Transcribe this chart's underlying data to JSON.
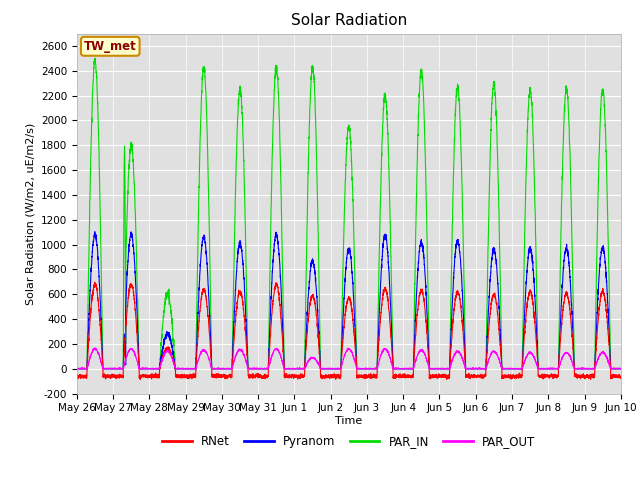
{
  "title": "Solar Radiation",
  "ylabel": "Solar Radiation (W/m2, uE/m2/s)",
  "xlabel": "Time",
  "ylim": [
    -200,
    2700
  ],
  "yticks": [
    -200,
    0,
    200,
    400,
    600,
    800,
    1000,
    1200,
    1400,
    1600,
    1800,
    2000,
    2200,
    2400,
    2600
  ],
  "xtick_labels": [
    "May 26",
    "May 27",
    "May 28",
    "May 29",
    "May 30",
    "May 31",
    "Jun 1",
    "Jun 2",
    "Jun 3",
    "Jun 4",
    "Jun 5",
    "Jun 6",
    "Jun 7",
    "Jun 8",
    "Jun 9",
    "Jun 10"
  ],
  "line_colors": {
    "RNet": "#ff0000",
    "Pyranom": "#0000ff",
    "PAR_IN": "#00dd00",
    "PAR_OUT": "#ff00ff"
  },
  "line_widths": {
    "RNet": 0.8,
    "Pyranom": 0.8,
    "PAR_IN": 0.8,
    "PAR_OUT": 0.8
  },
  "legend_label": "TW_met",
  "legend_box_color": "#ffffcc",
  "legend_box_edge": "#cc8800",
  "bg_color": "#e0e0e0",
  "grid_color": "#ffffff",
  "title_fontsize": 11,
  "label_fontsize": 8,
  "tick_fontsize": 7.5,
  "par_in_peaks": [
    2480,
    1800,
    600,
    2430,
    2250,
    2430,
    2430,
    1950,
    2200,
    2400,
    2270,
    2300,
    2250,
    2250,
    2250,
    2220
  ],
  "pyranom_peaks": [
    1080,
    1080,
    280,
    1060,
    1010,
    1080,
    870,
    960,
    1080,
    1020,
    1030,
    960,
    970,
    970,
    975,
    960
  ],
  "rnet_peaks": [
    680,
    680,
    160,
    640,
    620,
    680,
    590,
    570,
    650,
    630,
    620,
    600,
    620,
    610,
    620,
    610
  ],
  "par_out_peaks": [
    160,
    160,
    140,
    150,
    155,
    160,
    90,
    160,
    160,
    150,
    140,
    140,
    130,
    130,
    130,
    130
  ]
}
